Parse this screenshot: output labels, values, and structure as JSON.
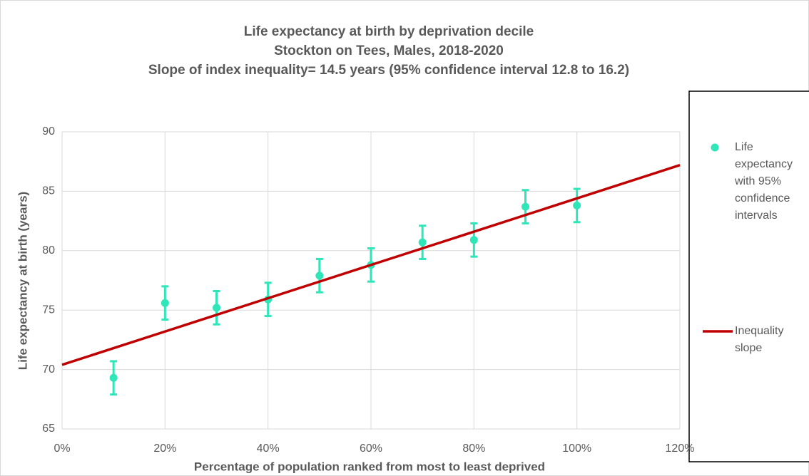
{
  "chart_data": {
    "type": "scatter",
    "title": "Life expectancy at birth by deprivation decile",
    "subtitle": "Stockton on Tees, Males, 2018-2020",
    "annotation": "Slope of index inequality= 14.5 years (95% confidence interval 12.8 to 16.2)",
    "x_label": "Percentage of population ranked from most to least deprived",
    "y_label": "Life expectancy at birth (years)",
    "xlim": [
      0,
      120
    ],
    "xticks": [
      {
        "value": 0,
        "label": "0%"
      },
      {
        "value": 20,
        "label": "20%"
      },
      {
        "value": 40,
        "label": "40%"
      },
      {
        "value": 60,
        "label": "60%"
      },
      {
        "value": 80,
        "label": "80%"
      },
      {
        "value": 100,
        "label": "100%"
      },
      {
        "value": 120,
        "label": "120%"
      }
    ],
    "ylim": [
      65,
      90
    ],
    "yticks": [
      65,
      70,
      75,
      80,
      85,
      90
    ],
    "grid": true,
    "legend": "right",
    "series": [
      {
        "name": "Life expectancy with 95% confidence intervals",
        "color": "#2ee6b8",
        "type": "scatter",
        "x": [
          10,
          20,
          30,
          40,
          50,
          60,
          70,
          80,
          90,
          100
        ],
        "values": [
          69.3,
          75.6,
          75.2,
          75.9,
          77.9,
          78.8,
          80.7,
          80.9,
          83.7,
          83.8
        ],
        "errors": [
          1.4,
          1.4,
          1.4,
          1.4,
          1.4,
          1.4,
          1.4,
          1.4,
          1.4,
          1.4
        ]
      },
      {
        "name": "Inequality slope",
        "color": "#c00000",
        "type": "line",
        "x": [
          0,
          120
        ],
        "values": [
          70.4,
          87.2
        ]
      }
    ]
  }
}
